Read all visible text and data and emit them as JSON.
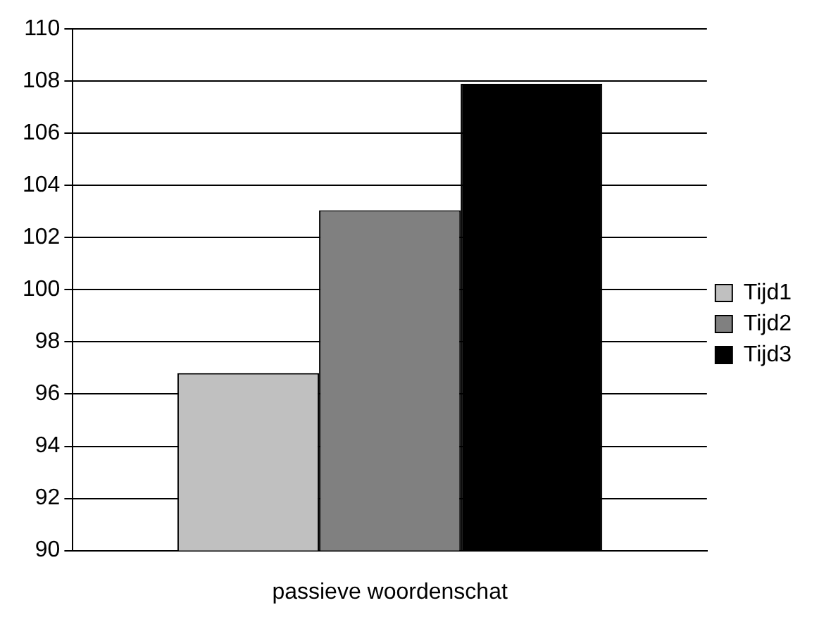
{
  "chart_data": {
    "type": "bar",
    "categories": [
      "passieve woordenschat"
    ],
    "series": [
      {
        "name": "Tijd1",
        "color": "#c0c0c0",
        "values": [
          96.8
        ]
      },
      {
        "name": "Tijd2",
        "color": "#808080",
        "values": [
          103.05
        ]
      },
      {
        "name": "Tijd3",
        "color": "#000000",
        "values": [
          107.9
        ]
      }
    ],
    "ylim": [
      90,
      110
    ],
    "yticks": [
      90,
      92,
      94,
      96,
      98,
      100,
      102,
      104,
      106,
      108,
      110
    ],
    "grid": "y",
    "legend": "right"
  }
}
